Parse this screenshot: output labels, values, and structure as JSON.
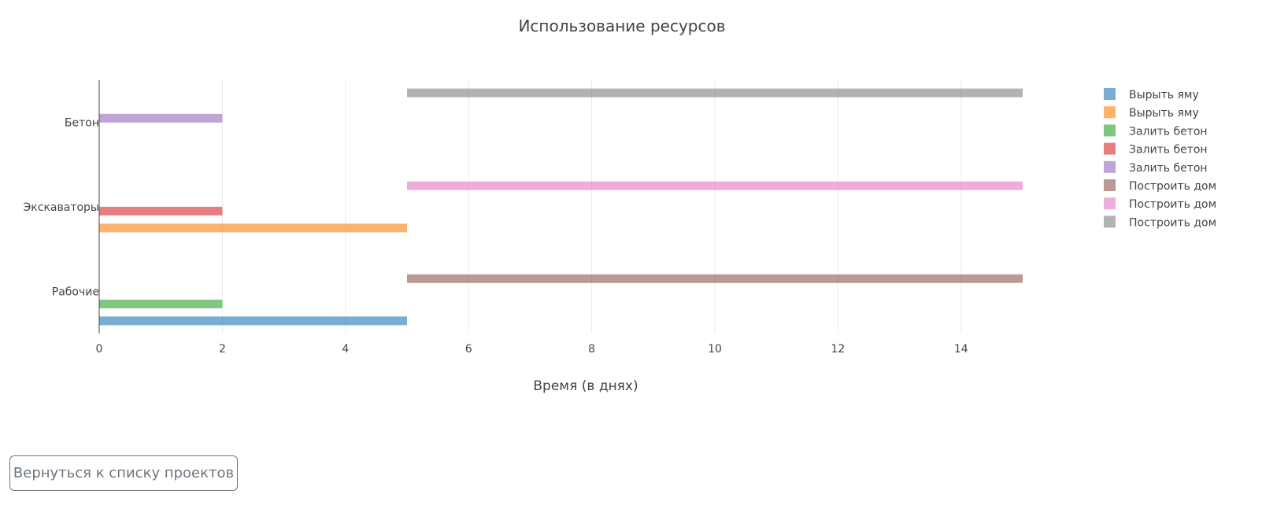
{
  "chart_data": {
    "type": "bar",
    "orientation": "horizontal",
    "barmode": "group",
    "title": "Использование ресурсов",
    "xlabel": "Время (в днях)",
    "ylabel": "",
    "xlim": [
      0,
      15
    ],
    "x_ticks": [
      0,
      2,
      4,
      6,
      8,
      10,
      12,
      14
    ],
    "categories": [
      "Рабочие",
      "Экскаваторы",
      "Бетон"
    ],
    "grid": "vertical",
    "legend_position": "right",
    "series": [
      {
        "name": "Вырыть яму",
        "color": "#1f77b4",
        "category": "Рабочие",
        "start": 0,
        "end": 5
      },
      {
        "name": "Вырыть яму",
        "color": "#ff7f0e",
        "category": "Экскаваторы",
        "start": 0,
        "end": 5
      },
      {
        "name": "Залить бетон",
        "color": "#2ca02c",
        "category": "Рабочие",
        "start": 0,
        "end": 2
      },
      {
        "name": "Залить бетон",
        "color": "#d62728",
        "category": "Экскаваторы",
        "start": 0,
        "end": 2
      },
      {
        "name": "Залить бетон",
        "color": "#9467bd",
        "category": "Бетон",
        "start": 0,
        "end": 2
      },
      {
        "name": "Построить дом",
        "color": "#8c564b",
        "category": "Рабочие",
        "start": 5,
        "end": 15
      },
      {
        "name": "Построить дом",
        "color": "#e377c2",
        "category": "Экскаваторы",
        "start": 5,
        "end": 15
      },
      {
        "name": "Построить дом",
        "color": "#7f7f7f",
        "category": "Бетон",
        "start": 5,
        "end": 15
      }
    ]
  },
  "footer": {
    "back_button_label": "Вернуться к списку проектов"
  }
}
